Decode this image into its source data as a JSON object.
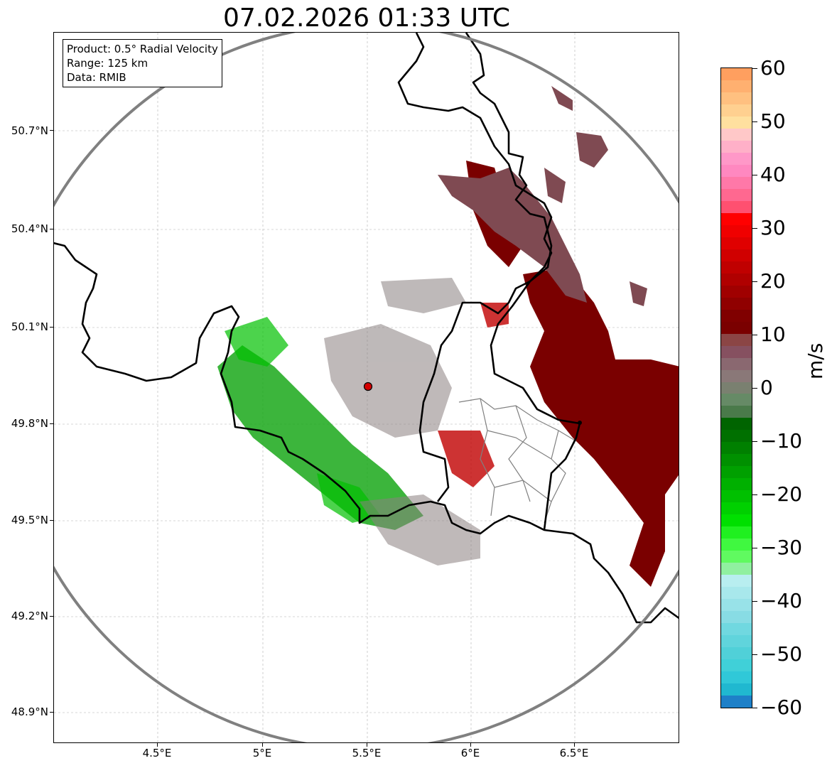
{
  "title": "07.02.2026 01:33 UTC",
  "info": {
    "product": "Product: 0.5° Radial Velocity",
    "range": "Range: 125 km",
    "data": "Data: RMIB"
  },
  "map": {
    "lat_ticks": [
      "50.7°N",
      "50.4°N",
      "50.1°N",
      "49.8°N",
      "49.5°N",
      "49.2°N",
      "48.9°N"
    ],
    "lon_ticks": [
      "4.5°E",
      "5°E",
      "5.5°E",
      "6°E",
      "6.5°E"
    ],
    "radar_marker": "radar-site",
    "range_ring_color": "#808080",
    "border_color": "#000000",
    "admin_border_color": "#808080"
  },
  "colorbar": {
    "label": "m/s",
    "ticks": [
      "60",
      "50",
      "40",
      "30",
      "20",
      "10",
      "0",
      "−10",
      "−20",
      "−30",
      "−40",
      "−50",
      "−60"
    ],
    "min": -60,
    "max": 60,
    "colors_top_to_bottom": [
      "#ff9f5f",
      "#ffb070",
      "#ffc080",
      "#ffd090",
      "#ffe09f",
      "#ffc8c8",
      "#ffb0c8",
      "#ff98c8",
      "#ff88c0",
      "#ff78a8",
      "#ff6890",
      "#ff5070",
      "#ff0000",
      "#f00000",
      "#e00000",
      "#d00000",
      "#c00000",
      "#b00000",
      "#a00000",
      "#900000",
      "#800000",
      "#7a0000",
      "#8b4545",
      "#865060",
      "#8a6870",
      "#8a7878",
      "#7a8070",
      "#668a66",
      "#4a7a4a",
      "#006400",
      "#007000",
      "#008000",
      "#009000",
      "#00a000",
      "#00b000",
      "#00c000",
      "#00d000",
      "#00e000",
      "#20f020",
      "#40f840",
      "#60fa60",
      "#90f0a0",
      "#b8eef0",
      "#a8e8ec",
      "#98e2e8",
      "#88dce4",
      "#70d8e0",
      "#60d4dc",
      "#50d0d8",
      "#40d0d8",
      "#30c8d8",
      "#20b8d0",
      "#1e80c8"
    ]
  }
}
